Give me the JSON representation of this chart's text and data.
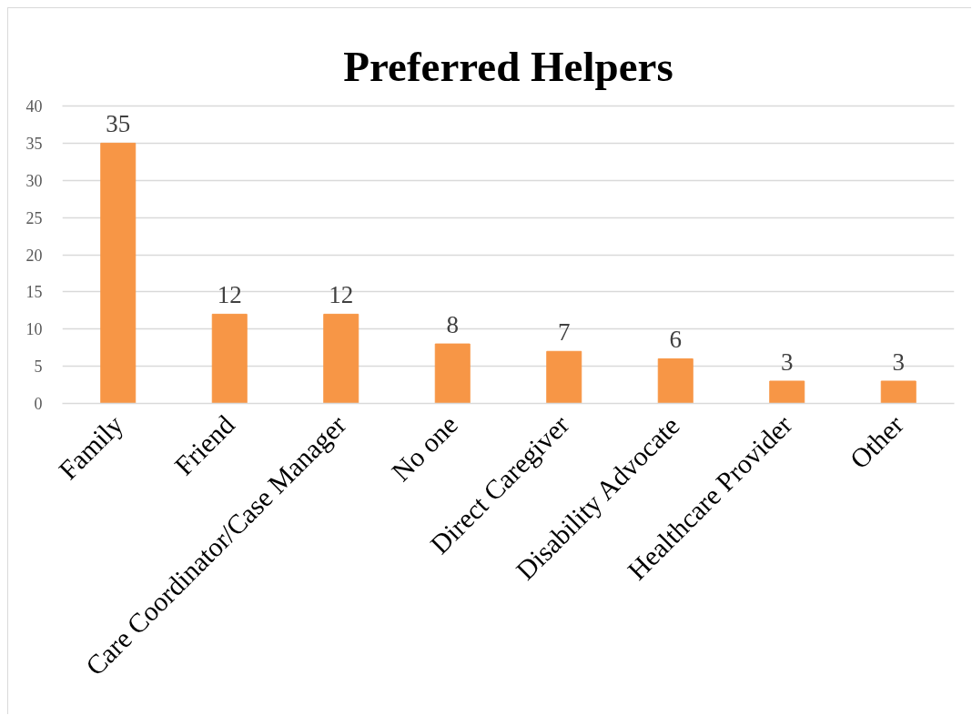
{
  "chart_data": {
    "type": "bar",
    "title": "Preferred Helpers",
    "categories": [
      "Family",
      "Friend",
      "Care Coordinator/Case Manager",
      "No one",
      "Direct Caregiver",
      "Disability Advocate",
      "Healthcare Provider",
      "Other"
    ],
    "values": [
      35,
      12,
      12,
      8,
      7,
      6,
      3,
      3
    ],
    "color": "#f79646",
    "ylim": [
      0,
      40
    ],
    "yticks": [
      0,
      5,
      10,
      15,
      20,
      25,
      30,
      35,
      40
    ],
    "grid": "y",
    "data_labels": true
  }
}
